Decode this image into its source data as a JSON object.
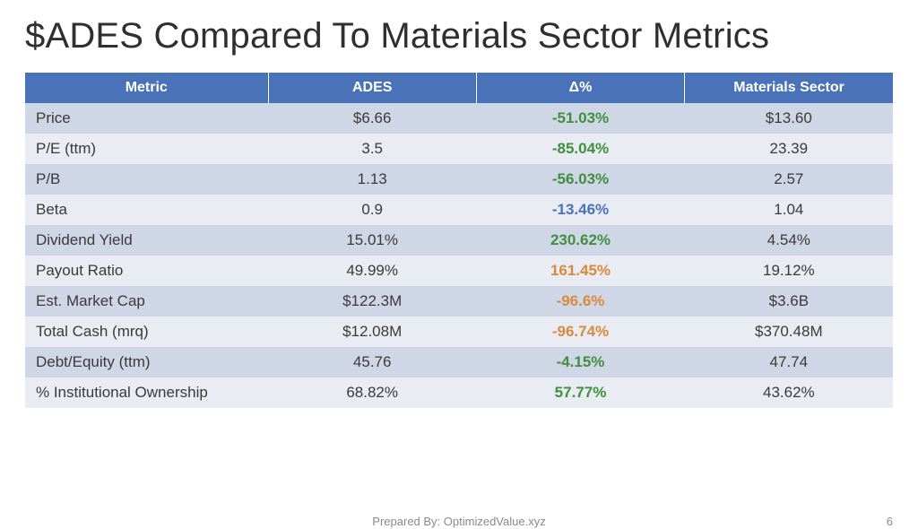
{
  "title": "$ADES Compared To Materials Sector Metrics",
  "footer": {
    "prepared": "Prepared By: OptimizedValue.xyz",
    "page": "6"
  },
  "table": {
    "type": "table",
    "header_bg": "#4a72b8",
    "header_text_color": "#ffffff",
    "row_band_a_bg": "#cfd6e6",
    "row_band_b_bg": "#e9ecf3",
    "body_text_color": "#3a3a3a",
    "header_fontsize": 16,
    "body_fontsize": 17,
    "column_widths_pct": [
      28,
      24,
      24,
      24
    ],
    "column_align": [
      "left",
      "center",
      "center",
      "center"
    ],
    "delta_bold": true,
    "columns": [
      "Metric",
      "ADES",
      "Δ%",
      "Materials Sector"
    ],
    "delta_colors": {
      "green": "#3f8f3f",
      "blue": "#4a72b8",
      "orange": "#d98a3a"
    },
    "rows": [
      {
        "metric": "Price",
        "ades": "$6.66",
        "delta": "-51.03%",
        "delta_color": "#3f8f3f",
        "sector": "$13.60"
      },
      {
        "metric": "P/E (ttm)",
        "ades": "3.5",
        "delta": "-85.04%",
        "delta_color": "#3f8f3f",
        "sector": "23.39"
      },
      {
        "metric": "P/B",
        "ades": "1.13",
        "delta": "-56.03%",
        "delta_color": "#3f8f3f",
        "sector": "2.57"
      },
      {
        "metric": "Beta",
        "ades": "0.9",
        "delta": "-13.46%",
        "delta_color": "#4a72b8",
        "sector": "1.04"
      },
      {
        "metric": "Dividend Yield",
        "ades": "15.01%",
        "delta": "230.62%",
        "delta_color": "#3f8f3f",
        "sector": "4.54%"
      },
      {
        "metric": "Payout Ratio",
        "ades": "49.99%",
        "delta": "161.45%",
        "delta_color": "#d98a3a",
        "sector": "19.12%"
      },
      {
        "metric": "Est. Market Cap",
        "ades": "$122.3M",
        "delta": "-96.6%",
        "delta_color": "#d98a3a",
        "sector": "$3.6B"
      },
      {
        "metric": "Total Cash (mrq)",
        "ades": "$12.08M",
        "delta": "-96.74%",
        "delta_color": "#d98a3a",
        "sector": "$370.48M"
      },
      {
        "metric": "Debt/Equity (ttm)",
        "ades": "45.76",
        "delta": "-4.15%",
        "delta_color": "#3f8f3f",
        "sector": "47.74"
      },
      {
        "metric": "% Institutional Ownership",
        "ades": "68.82%",
        "delta": "57.77%",
        "delta_color": "#3f8f3f",
        "sector": "43.62%"
      }
    ]
  }
}
